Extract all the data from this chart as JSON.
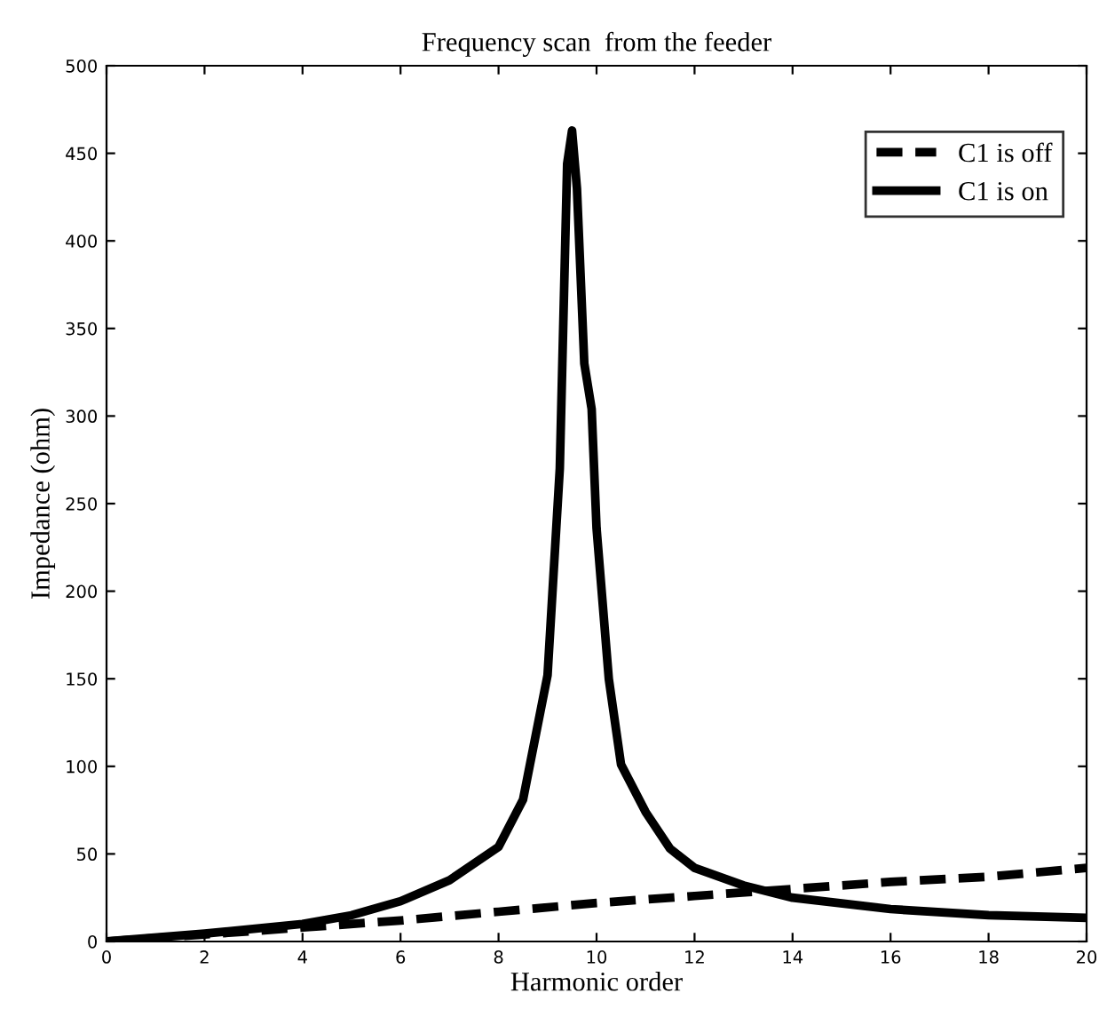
{
  "chart_data": {
    "type": "line",
    "title": "Frequency scan  from the feeder",
    "xlabel": "Harmonic order",
    "ylabel": "Impedance (ohm)",
    "xlim": [
      0,
      20
    ],
    "ylim": [
      0,
      500
    ],
    "xticks": [
      0,
      2,
      4,
      6,
      8,
      10,
      12,
      14,
      16,
      18,
      20
    ],
    "yticks": [
      0,
      50,
      100,
      150,
      200,
      250,
      300,
      350,
      400,
      450,
      500
    ],
    "grid": false,
    "legend": "top right",
    "marker": "none",
    "series": [
      {
        "name": "C1 is off",
        "color": "#000000",
        "line_style": "dashed",
        "x": [
          0,
          2,
          4,
          6,
          8,
          10,
          12,
          14,
          16,
          18,
          20
        ],
        "values": [
          0,
          4,
          8,
          12,
          17,
          22,
          26,
          30,
          34,
          37,
          42
        ]
      },
      {
        "name": "C1 is on",
        "color": "#000000",
        "line_style": "solid",
        "x": [
          0,
          2,
          4,
          5,
          6,
          7,
          8,
          8.5,
          9,
          9.25,
          9.4,
          9.5,
          9.6,
          9.75,
          9.9,
          10,
          10.25,
          10.5,
          11,
          11.5,
          12,
          13,
          14,
          16,
          18,
          20
        ],
        "values": [
          0,
          4.5,
          10,
          15,
          23,
          35,
          54,
          81,
          152,
          270,
          444,
          463,
          430,
          330,
          304,
          236,
          150,
          101,
          74,
          53,
          42,
          32,
          25,
          18.5,
          15,
          13.5
        ]
      }
    ]
  }
}
